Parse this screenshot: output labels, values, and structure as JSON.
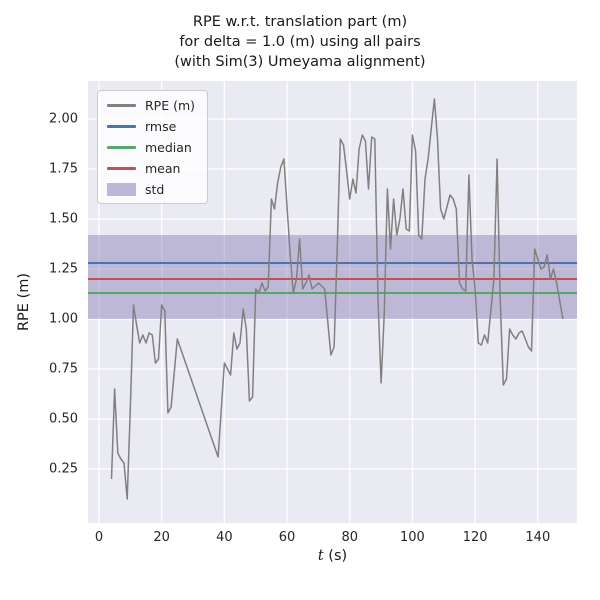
{
  "figure": {
    "title_lines": [
      "RPE w.r.t. translation part (m)",
      "for delta = 1.0 (m) using all pairs",
      "(with Sim(3) Umeyama alignment)"
    ],
    "xlabel_var": "t",
    "xlabel_unit": " (s)",
    "ylabel": "RPE (m)"
  },
  "chart_data": {
    "type": "line",
    "title": "RPE w.r.t. translation part (m)\nfor delta = 1.0 (m) using all pairs\n(with Sim(3) Umeyama alignment)",
    "xlabel": "t (s)",
    "ylabel": "RPE (m)",
    "xlim": [
      -3.5,
      152.5
    ],
    "ylim": [
      -0.02,
      2.19
    ],
    "xticks": [
      0,
      20,
      40,
      60,
      80,
      100,
      120,
      140
    ],
    "yticks": [
      0.25,
      0.5,
      0.75,
      1.0,
      1.25,
      1.5,
      1.75,
      2.0
    ],
    "grid": true,
    "legend_position": "upper left",
    "colors": {
      "axes_bg": "#eaeaf2",
      "grid": "#ffffff",
      "text": "#262626"
    },
    "series": [
      {
        "name": "RPE (m)",
        "color": "#808080",
        "points": [
          [
            4,
            0.2
          ],
          [
            5,
            0.65
          ],
          [
            6,
            0.33
          ],
          [
            7,
            0.3
          ],
          [
            8,
            0.28
          ],
          [
            9,
            0.1
          ],
          [
            10,
            0.55
          ],
          [
            11,
            1.07
          ],
          [
            12,
            0.97
          ],
          [
            13,
            0.88
          ],
          [
            14,
            0.92
          ],
          [
            15,
            0.88
          ],
          [
            16,
            0.93
          ],
          [
            17,
            0.92
          ],
          [
            18,
            0.78
          ],
          [
            19,
            0.8
          ],
          [
            20,
            1.07
          ],
          [
            21,
            1.04
          ],
          [
            22,
            0.53
          ],
          [
            23,
            0.56
          ],
          [
            25,
            0.9
          ],
          [
            38,
            0.31
          ],
          [
            40,
            0.78
          ],
          [
            41,
            0.75
          ],
          [
            42,
            0.72
          ],
          [
            43,
            0.93
          ],
          [
            44,
            0.85
          ],
          [
            45,
            0.88
          ],
          [
            46,
            1.05
          ],
          [
            47,
            0.95
          ],
          [
            48,
            0.59
          ],
          [
            49,
            0.61
          ],
          [
            50,
            1.15
          ],
          [
            51,
            1.13
          ],
          [
            52,
            1.18
          ],
          [
            53,
            1.14
          ],
          [
            54,
            1.16
          ],
          [
            55,
            1.6
          ],
          [
            56,
            1.55
          ],
          [
            57,
            1.68
          ],
          [
            58,
            1.76
          ],
          [
            59,
            1.8
          ],
          [
            61,
            1.32
          ],
          [
            62,
            1.13
          ],
          [
            63,
            1.2
          ],
          [
            64,
            1.4
          ],
          [
            65,
            1.15
          ],
          [
            66,
            1.18
          ],
          [
            67,
            1.22
          ],
          [
            68,
            1.15
          ],
          [
            70,
            1.18
          ],
          [
            72,
            1.15
          ],
          [
            74,
            0.82
          ],
          [
            75,
            0.86
          ],
          [
            76,
            1.35
          ],
          [
            77,
            1.9
          ],
          [
            78,
            1.87
          ],
          [
            79,
            1.74
          ],
          [
            80,
            1.6
          ],
          [
            81,
            1.7
          ],
          [
            82,
            1.63
          ],
          [
            83,
            1.85
          ],
          [
            84,
            1.92
          ],
          [
            85,
            1.89
          ],
          [
            86,
            1.65
          ],
          [
            87,
            1.91
          ],
          [
            88,
            1.9
          ],
          [
            89,
            1.1
          ],
          [
            90,
            0.68
          ],
          [
            91,
            1.02
          ],
          [
            92,
            1.65
          ],
          [
            93,
            1.35
          ],
          [
            94,
            1.6
          ],
          [
            95,
            1.42
          ],
          [
            96,
            1.5
          ],
          [
            97,
            1.65
          ],
          [
            98,
            1.45
          ],
          [
            99,
            1.44
          ],
          [
            100,
            1.92
          ],
          [
            101,
            1.84
          ],
          [
            102,
            1.42
          ],
          [
            103,
            1.4
          ],
          [
            104,
            1.7
          ],
          [
            105,
            1.8
          ],
          [
            106,
            1.95
          ],
          [
            107,
            2.1
          ],
          [
            108,
            1.9
          ],
          [
            109,
            1.55
          ],
          [
            110,
            1.5
          ],
          [
            111,
            1.56
          ],
          [
            112,
            1.62
          ],
          [
            113,
            1.6
          ],
          [
            114,
            1.55
          ],
          [
            115,
            1.18
          ],
          [
            116,
            1.15
          ],
          [
            117,
            1.14
          ],
          [
            118,
            1.72
          ],
          [
            119,
            1.3
          ],
          [
            120,
            1.15
          ],
          [
            121,
            0.88
          ],
          [
            122,
            0.87
          ],
          [
            123,
            0.92
          ],
          [
            124,
            0.88
          ],
          [
            126,
            1.2
          ],
          [
            127,
            1.8
          ],
          [
            128,
            1.1
          ],
          [
            129,
            0.67
          ],
          [
            130,
            0.7
          ],
          [
            131,
            0.95
          ],
          [
            132,
            0.92
          ],
          [
            133,
            0.9
          ],
          [
            134,
            0.93
          ],
          [
            135,
            0.94
          ],
          [
            136,
            0.9
          ],
          [
            137,
            0.86
          ],
          [
            138,
            0.84
          ],
          [
            139,
            1.35
          ],
          [
            140,
            1.3
          ],
          [
            141,
            1.25
          ],
          [
            142,
            1.26
          ],
          [
            143,
            1.32
          ],
          [
            144,
            1.2
          ],
          [
            145,
            1.25
          ],
          [
            146,
            1.18
          ],
          [
            148,
            1.0
          ]
        ]
      }
    ],
    "stat_lines": [
      {
        "name": "rmse",
        "value": 1.28,
        "color": "#4c72b0"
      },
      {
        "name": "median",
        "value": 1.13,
        "color": "#55a868"
      },
      {
        "name": "mean",
        "value": 1.2,
        "color": "#c44e52"
      }
    ],
    "band": {
      "name": "std",
      "low": 1.0,
      "high": 1.42,
      "color": "#8172b2",
      "opacity": 0.42
    },
    "legend": [
      {
        "label": "RPE (m)",
        "swatch": "line",
        "color": "#808080"
      },
      {
        "label": "rmse",
        "swatch": "line",
        "color": "#4c72b0"
      },
      {
        "label": "median",
        "swatch": "line",
        "color": "#55a868"
      },
      {
        "label": "mean",
        "swatch": "line",
        "color": "#c44e52"
      },
      {
        "label": "std",
        "swatch": "patch",
        "color": "#8172b2"
      }
    ]
  }
}
